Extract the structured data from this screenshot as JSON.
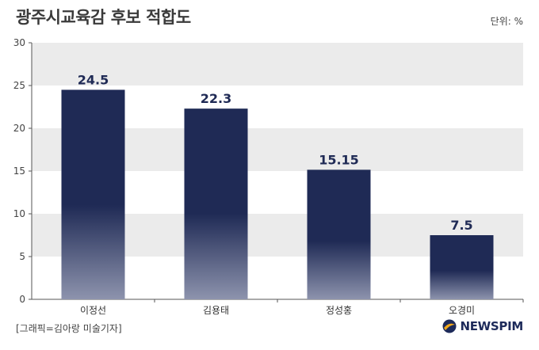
{
  "title": "광주시교육감 후보 적합도",
  "unit_label": "단위: %",
  "credit": "[그래픽=김아랑 미술기자]",
  "logo_text": "NEWSPIM",
  "colors": {
    "bar_top": "#1f2a55",
    "bar_bottom": "#8d93ad",
    "band": "#ebebeb",
    "axis": "#555555",
    "value_label": "#1f2a55"
  },
  "chart_data": {
    "type": "bar",
    "categories": [
      "이정선",
      "김용태",
      "정성홍",
      "오경미"
    ],
    "values": [
      24.5,
      22.3,
      15.15,
      7.5
    ],
    "value_labels": [
      "24.5",
      "22.3",
      "15.15",
      "7.5"
    ],
    "title": "광주시교육감 후보 적합도",
    "xlabel": "",
    "ylabel": "",
    "ylim": [
      0,
      30
    ],
    "yticks": [
      0,
      5,
      10,
      15,
      20,
      25,
      30
    ],
    "grid": "alternating horizontal bands",
    "legend": "none"
  }
}
